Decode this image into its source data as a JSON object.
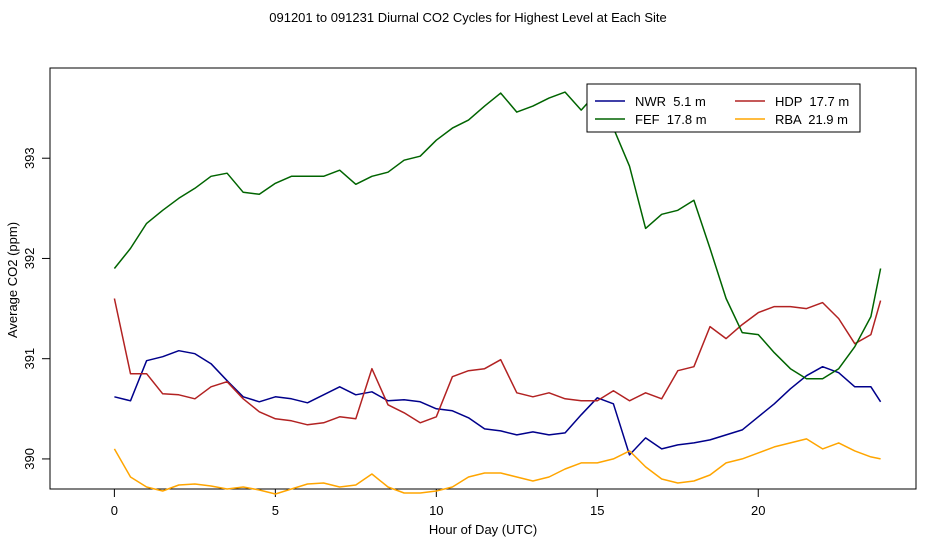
{
  "chart_data": {
    "type": "line",
    "title": "091201  to  091231 Diurnal CO2 Cycles for Highest Level at Each Site",
    "xlabel": "Hour of Day (UTC)",
    "ylabel": "Average CO2 (ppm)",
    "xlim": [
      -2,
      24.9
    ],
    "ylim": [
      389.7,
      393.9
    ],
    "xticks": [
      0,
      5,
      10,
      15,
      20
    ],
    "yticks": [
      390,
      391,
      392,
      393
    ],
    "grid": false,
    "legend_position": "top-right",
    "series": [
      {
        "name": "NWR  5.1 m",
        "color": "#00008b",
        "x": [
          0,
          0.5,
          1,
          1.5,
          2,
          2.5,
          3,
          3.5,
          4,
          4.5,
          5,
          5.5,
          6,
          6.5,
          7,
          7.5,
          8,
          8.5,
          9,
          9.5,
          10,
          10.5,
          11,
          11.5,
          12,
          12.5,
          13,
          13.5,
          14,
          14.5,
          15,
          15.5,
          16,
          16.5,
          17,
          17.5,
          18,
          18.5,
          19,
          19.5,
          20,
          20.5,
          21,
          21.5,
          22,
          22.5,
          23,
          23.5,
          23.8
        ],
        "y": [
          390.62,
          390.58,
          390.98,
          391.02,
          391.08,
          391.05,
          390.95,
          390.78,
          390.62,
          390.57,
          390.62,
          390.6,
          390.56,
          390.64,
          390.72,
          390.64,
          390.67,
          390.58,
          390.59,
          390.57,
          390.5,
          390.48,
          390.41,
          390.3,
          390.28,
          390.24,
          390.27,
          390.24,
          390.26,
          390.44,
          390.61,
          390.55,
          390.04,
          390.21,
          390.1,
          390.14,
          390.16,
          390.19,
          390.24,
          390.29,
          390.42,
          390.55,
          390.7,
          390.83,
          390.92,
          390.86,
          390.72,
          390.72,
          390.57
        ]
      },
      {
        "name": "HDP  17.7 m",
        "color": "#b22222",
        "x": [
          0,
          0.5,
          1,
          1.5,
          2,
          2.5,
          3,
          3.5,
          4,
          4.5,
          5,
          5.5,
          6,
          6.5,
          7,
          7.5,
          8,
          8.5,
          9,
          9.5,
          10,
          10.5,
          11,
          11.5,
          12,
          12.5,
          13,
          13.5,
          14,
          14.5,
          15,
          15.5,
          16,
          16.5,
          17,
          17.5,
          18,
          18.5,
          19,
          19.5,
          20,
          20.5,
          21,
          21.5,
          22,
          22.5,
          23,
          23.5,
          23.8
        ],
        "y": [
          391.6,
          390.85,
          390.85,
          390.65,
          390.64,
          390.6,
          390.72,
          390.77,
          390.6,
          390.47,
          390.4,
          390.38,
          390.34,
          390.36,
          390.42,
          390.4,
          390.9,
          390.54,
          390.46,
          390.36,
          390.42,
          390.82,
          390.88,
          390.9,
          390.99,
          390.66,
          390.62,
          390.66,
          390.6,
          390.58,
          390.58,
          390.68,
          390.58,
          390.66,
          390.6,
          390.88,
          390.92,
          391.32,
          391.2,
          391.34,
          391.46,
          391.52,
          391.52,
          391.5,
          391.56,
          391.4,
          391.15,
          391.24,
          391.58
        ]
      },
      {
        "name": "FEF  17.8 m",
        "color": "#006400",
        "x": [
          0,
          0.5,
          1,
          1.5,
          2,
          2.5,
          3,
          3.5,
          4,
          4.5,
          5,
          5.5,
          6,
          6.5,
          7,
          7.5,
          8,
          8.5,
          9,
          9.5,
          10,
          10.5,
          11,
          11.5,
          12,
          12.5,
          13,
          13.5,
          14,
          14.5,
          15,
          15.5,
          16,
          16.5,
          17,
          17.5,
          18,
          18.5,
          19,
          19.5,
          20,
          20.5,
          21,
          21.5,
          22,
          22.5,
          23,
          23.5,
          23.8
        ],
        "y": [
          391.9,
          392.1,
          392.35,
          392.48,
          392.6,
          392.7,
          392.82,
          392.85,
          392.66,
          392.64,
          392.75,
          392.82,
          392.82,
          392.82,
          392.88,
          392.74,
          392.82,
          392.86,
          392.98,
          393.02,
          393.18,
          393.3,
          393.38,
          393.52,
          393.65,
          393.46,
          393.52,
          393.6,
          393.66,
          393.48,
          393.66,
          393.3,
          392.92,
          392.3,
          392.44,
          392.48,
          392.58,
          392.1,
          391.6,
          391.26,
          391.24,
          391.06,
          390.9,
          390.8,
          390.8,
          390.9,
          391.12,
          391.42,
          391.9
        ]
      },
      {
        "name": "RBA  21.9 m",
        "color": "#ffa500",
        "x": [
          0,
          0.5,
          1,
          1.5,
          2,
          2.5,
          3,
          3.5,
          4,
          4.5,
          5,
          5.5,
          6,
          6.5,
          7,
          7.5,
          8,
          8.5,
          9,
          9.5,
          10,
          10.5,
          11,
          11.5,
          12,
          12.5,
          13,
          13.5,
          14,
          14.5,
          15,
          15.5,
          16,
          16.5,
          17,
          17.5,
          18,
          18.5,
          19,
          19.5,
          20,
          20.5,
          21,
          21.5,
          22,
          22.5,
          23,
          23.5,
          23.8
        ],
        "y": [
          390.1,
          389.82,
          389.72,
          389.68,
          389.74,
          389.75,
          389.73,
          389.7,
          389.72,
          389.69,
          389.65,
          389.7,
          389.75,
          389.76,
          389.72,
          389.74,
          389.85,
          389.72,
          389.66,
          389.66,
          389.68,
          389.72,
          389.82,
          389.86,
          389.86,
          389.82,
          389.78,
          389.82,
          389.9,
          389.96,
          389.96,
          390.0,
          390.08,
          389.92,
          389.8,
          389.76,
          389.78,
          389.84,
          389.96,
          390.0,
          390.06,
          390.12,
          390.16,
          390.2,
          390.1,
          390.16,
          390.08,
          390.02,
          390.0
        ]
      }
    ]
  }
}
